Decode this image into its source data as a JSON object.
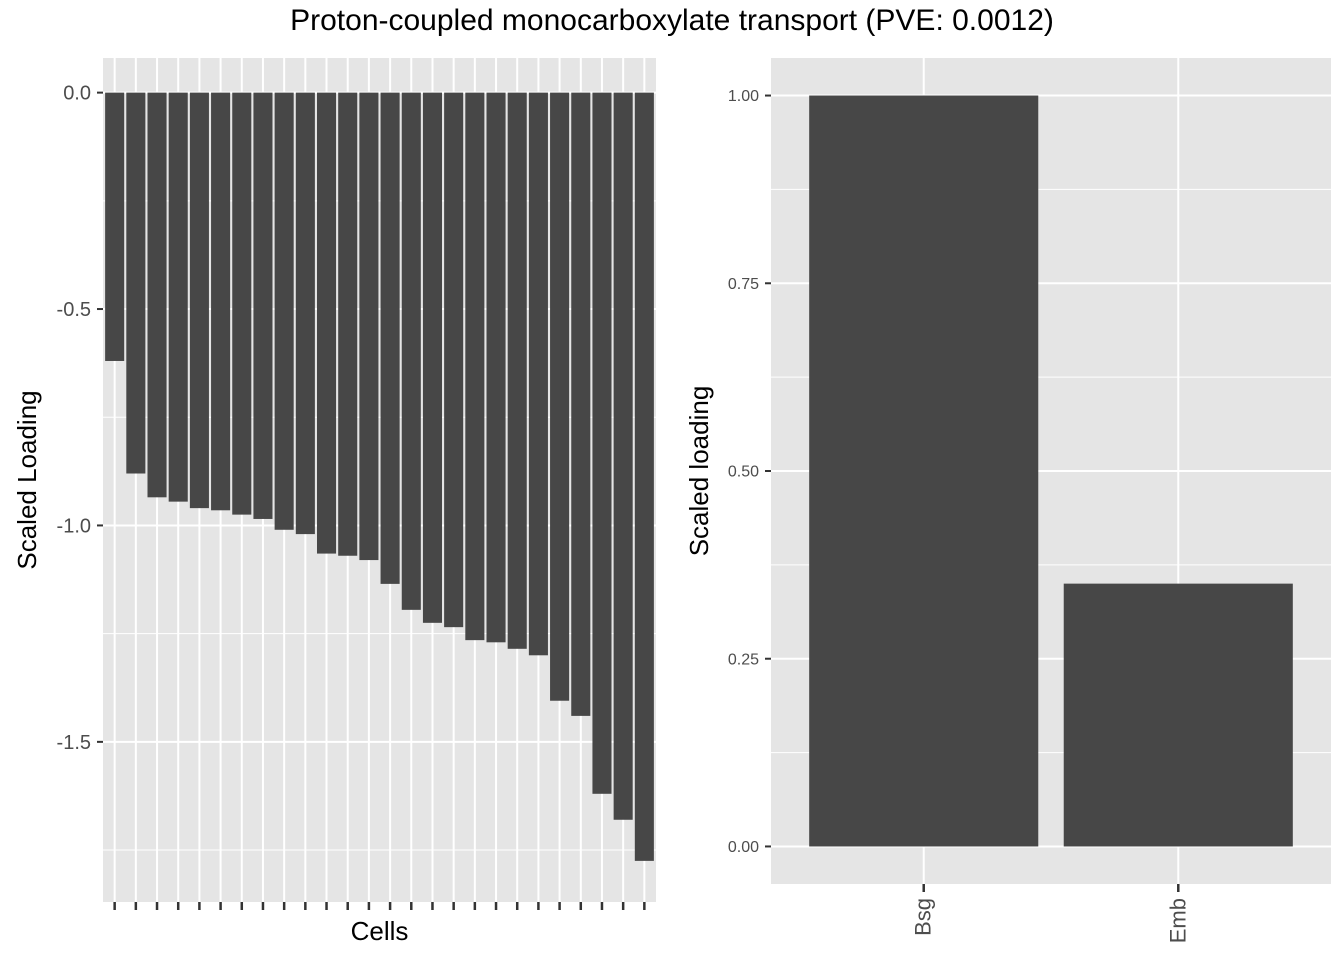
{
  "title": "Proton-coupled monocarboxylate transport (PVE: 0.0012)",
  "colors": {
    "bar": "#474747",
    "panel": "#e5e5e5",
    "grid": "#ffffff",
    "tick": "#4d4d4d",
    "text": "#4d4d4d"
  },
  "chart_data": [
    {
      "type": "bar",
      "xlabel": "Cells",
      "ylabel": "Scaled Loading",
      "ylim": [
        -1.87,
        0.08
      ],
      "yticks": [
        0.0,
        -0.5,
        -1.0,
        -1.5
      ],
      "ytick_labels": [
        "0.0",
        "-0.5",
        "-1.0",
        "-1.5"
      ],
      "categories": [
        "",
        "",
        "",
        "",
        "",
        "",
        "",
        "",
        "",
        "",
        "",
        "",
        "",
        "",
        "",
        "",
        "",
        "",
        "",
        "",
        "",
        "",
        "",
        "",
        "",
        ""
      ],
      "values": [
        -0.62,
        -0.88,
        -0.935,
        -0.945,
        -0.96,
        -0.965,
        -0.975,
        -0.985,
        -1.01,
        -1.02,
        -1.065,
        -1.07,
        -1.08,
        -1.135,
        -1.195,
        -1.225,
        -1.235,
        -1.265,
        -1.27,
        -1.285,
        -1.3,
        -1.405,
        -1.44,
        -1.62,
        -1.68,
        -1.775
      ],
      "grid": true
    },
    {
      "type": "bar",
      "xlabel": "",
      "ylabel": "Scaled loading",
      "ylim": [
        -0.05,
        1.05
      ],
      "yticks": [
        0.0,
        0.25,
        0.5,
        0.75,
        1.0
      ],
      "ytick_labels": [
        "0.00",
        "0.25",
        "0.50",
        "0.75",
        "1.00"
      ],
      "categories": [
        "Bsg",
        "Emb"
      ],
      "values": [
        1.0,
        0.35
      ],
      "grid": true
    }
  ]
}
